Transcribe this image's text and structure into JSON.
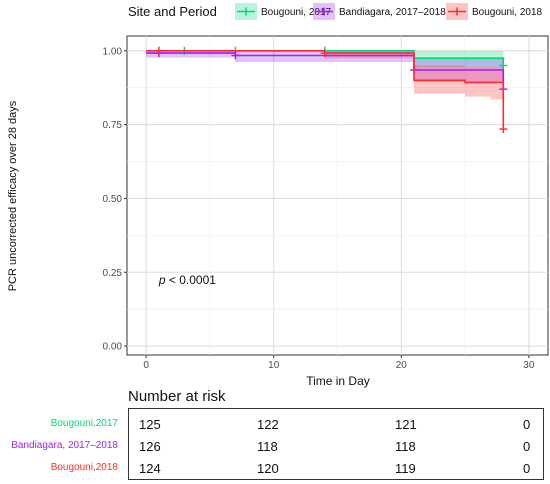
{
  "chart_data": {
    "type": "line",
    "subtype": "kaplan-meier",
    "title": "",
    "xlabel": "Time in Day",
    "ylabel": "PCR uncorrected efficacy over 28 days",
    "xlim": [
      -1.5,
      31.5
    ],
    "ylim": [
      -0.03,
      1.05
    ],
    "xticks": [
      "0",
      "10",
      "20",
      "30"
    ],
    "yticks": [
      "0.00",
      "0.25",
      "0.50",
      "0.75",
      "1.00"
    ],
    "grid": true,
    "annotation": {
      "p_label": "p",
      "p_rest": " < 0.0001"
    },
    "legend": {
      "title": "Site and Period",
      "position": "top",
      "entries": [
        "Bougouni, 2017",
        "Bandiagara, 2017–2018",
        "Bougouni, 2018"
      ]
    },
    "series": [
      {
        "name": "Bougouni, 2017",
        "color": "#00d67a",
        "steps": [
          [
            0,
            1.0
          ],
          [
            21,
            0.975
          ],
          [
            28,
            0.95
          ]
        ],
        "ci_lower": [
          [
            0,
            1.0
          ],
          [
            21,
            0.945
          ],
          [
            28,
            0.91
          ]
        ],
        "ci_upper": [
          [
            0,
            1.0
          ],
          [
            21,
            1.0
          ],
          [
            28,
            1.0
          ]
        ],
        "end_x": 28,
        "censor_x": [
          3,
          7,
          14,
          28
        ]
      },
      {
        "name": "Bandiagara, 2017–2018",
        "color": "#a020f0",
        "steps": [
          [
            0,
            0.992
          ],
          [
            7,
            0.984
          ],
          [
            21,
            0.935
          ],
          [
            28,
            0.87
          ]
        ],
        "ci_lower": [
          [
            0,
            0.977
          ],
          [
            7,
            0.962
          ],
          [
            21,
            0.895
          ],
          [
            28,
            0.8
          ]
        ],
        "ci_upper": [
          [
            0,
            1.0
          ],
          [
            7,
            1.0
          ],
          [
            21,
            0.975
          ],
          [
            28,
            0.94
          ]
        ],
        "end_x": 28,
        "censor_x": [
          1,
          7,
          21,
          28
        ]
      },
      {
        "name": "Bougouni, 2018",
        "color": "#ff2a2a",
        "steps": [
          [
            0,
            1.0
          ],
          [
            14,
            0.992
          ],
          [
            21,
            0.9
          ],
          [
            25,
            0.893
          ],
          [
            28,
            0.735
          ]
        ],
        "ci_lower": [
          [
            0,
            1.0
          ],
          [
            14,
            0.975
          ],
          [
            21,
            0.855
          ],
          [
            25,
            0.845
          ],
          [
            27,
            0.835
          ],
          [
            28,
            0.68
          ]
        ],
        "ci_upper": [
          [
            0,
            1.0
          ],
          [
            14,
            1.0
          ],
          [
            21,
            0.95
          ],
          [
            25,
            0.945
          ],
          [
            28,
            0.83
          ]
        ],
        "end_x": 28,
        "censor_x": [
          1,
          14,
          28
        ]
      }
    ]
  },
  "risk_table": {
    "title": "Number at risk",
    "rows": [
      {
        "label": "Bougouni,2017",
        "color": "#00d67a",
        "values": [
          "125",
          "122",
          "121",
          "0"
        ]
      },
      {
        "label": "Bandiagara, 2017–2018",
        "color": "#a020f0",
        "values": [
          "126",
          "118",
          "118",
          "0"
        ]
      },
      {
        "label": "Bougouni,2018",
        "color": "#ff2a2a",
        "values": [
          "124",
          "120",
          "119",
          "0"
        ]
      }
    ]
  }
}
